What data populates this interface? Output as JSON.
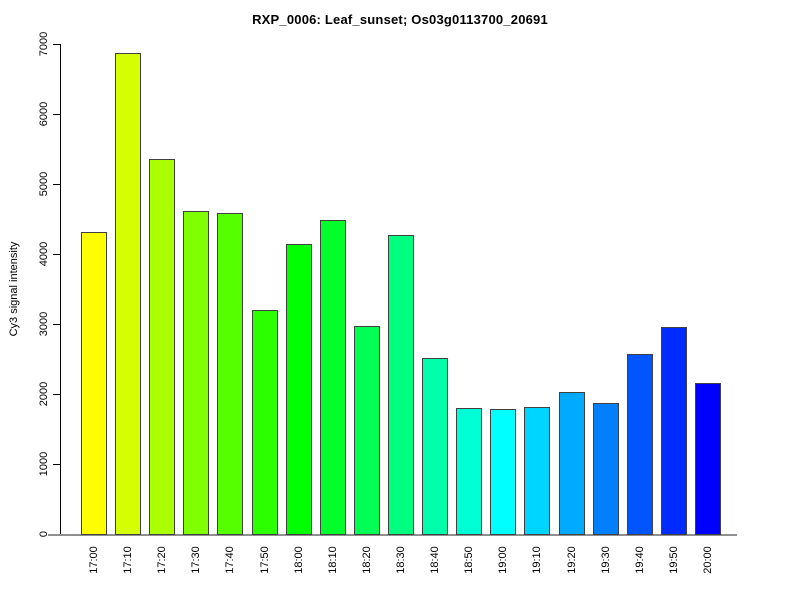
{
  "chart_data": {
    "type": "bar",
    "title": "RXP_0006: Leaf_sunset; Os03g0113700_20691",
    "xlabel": "",
    "ylabel": "Cy3 signal intensity",
    "ylim": [
      0,
      7000
    ],
    "y_ticks": [
      0,
      1000,
      2000,
      3000,
      4000,
      5000,
      6000,
      7000
    ],
    "grid": false,
    "legend": false,
    "categories": [
      "17:00",
      "17:10",
      "17:20",
      "17:30",
      "17:40",
      "17:50",
      "18:00",
      "18:10",
      "18:20",
      "18:30",
      "18:40",
      "18:50",
      "19:00",
      "19:10",
      "19:20",
      "19:30",
      "19:40",
      "19:50",
      "20:00"
    ],
    "values": [
      4330,
      6885,
      5370,
      4625,
      4595,
      3220,
      4160,
      4495,
      2990,
      4285,
      2525,
      1820,
      1805,
      1830,
      2040,
      1890,
      2590,
      2970,
      2170
    ],
    "bar_colors": [
      "#FFFF00",
      "#D5FF00",
      "#AAFF00",
      "#80FF00",
      "#55FF00",
      "#2BFF00",
      "#00FF00",
      "#00FF2B",
      "#00FF55",
      "#00FF80",
      "#00FFAA",
      "#00FFD5",
      "#00FFFF",
      "#00D5FF",
      "#00AAFF",
      "#0080FF",
      "#0055FF",
      "#002BFF",
      "#0000FF"
    ],
    "bar_border_color": "#404040",
    "axis_color": "#000000",
    "baseline_color": "#8f8f8f",
    "background_color": "#ffffff"
  }
}
